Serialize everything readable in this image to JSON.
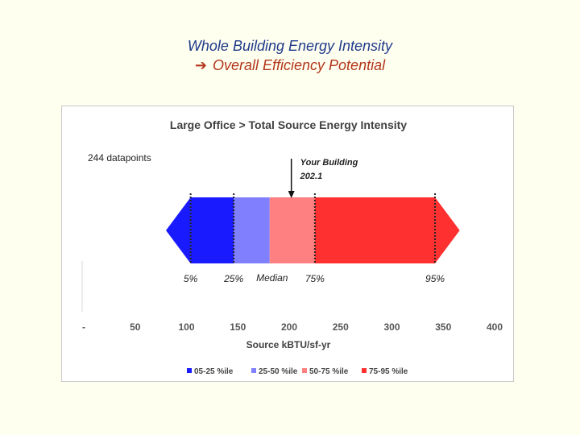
{
  "slide": {
    "title_line1": "Whole Building Energy Intensity",
    "title_line2_arrow": "➔",
    "title_line2": "Overall Efficiency Potential"
  },
  "chart_data": {
    "type": "bar",
    "title": "Large Office > Total Source Energy Intensity",
    "xlabel": "Source kBTU/sf-yr",
    "ylabel": "",
    "xlim": [
      0,
      400
    ],
    "x_ticks": [
      {
        "value": 0,
        "label": "-"
      },
      {
        "value": 50,
        "label": "50"
      },
      {
        "value": 100,
        "label": "100"
      },
      {
        "value": 150,
        "label": "150"
      },
      {
        "value": 200,
        "label": "200"
      },
      {
        "value": 250,
        "label": "250"
      },
      {
        "value": 300,
        "label": "300"
      },
      {
        "value": 350,
        "label": "350"
      },
      {
        "value": 400,
        "label": "400"
      }
    ],
    "datapoints_label": "244 datapoints",
    "percentiles": [
      {
        "label": "5%",
        "value": 104
      },
      {
        "label": "25%",
        "value": 146
      },
      {
        "label": "Median",
        "value": 181
      },
      {
        "label": "75%",
        "value": 225
      },
      {
        "label": "95%",
        "value": 342
      }
    ],
    "range_min": 80,
    "range_max": 366,
    "series": [
      {
        "name": "05-25 %ile",
        "from": 104,
        "to": 146,
        "color": "#1a1aff"
      },
      {
        "name": "25-50 %ile",
        "from": 146,
        "to": 181,
        "color": "#8080ff"
      },
      {
        "name": "50-75 %ile",
        "from": 181,
        "to": 225,
        "color": "#ff8080"
      },
      {
        "name": "75-95 %ile",
        "from": 225,
        "to": 342,
        "color": "#ff3030"
      }
    ],
    "your_building": {
      "label": "Your Building",
      "value": 202.1,
      "value_label": "202.1"
    },
    "grid": false,
    "legend": "bottom"
  }
}
